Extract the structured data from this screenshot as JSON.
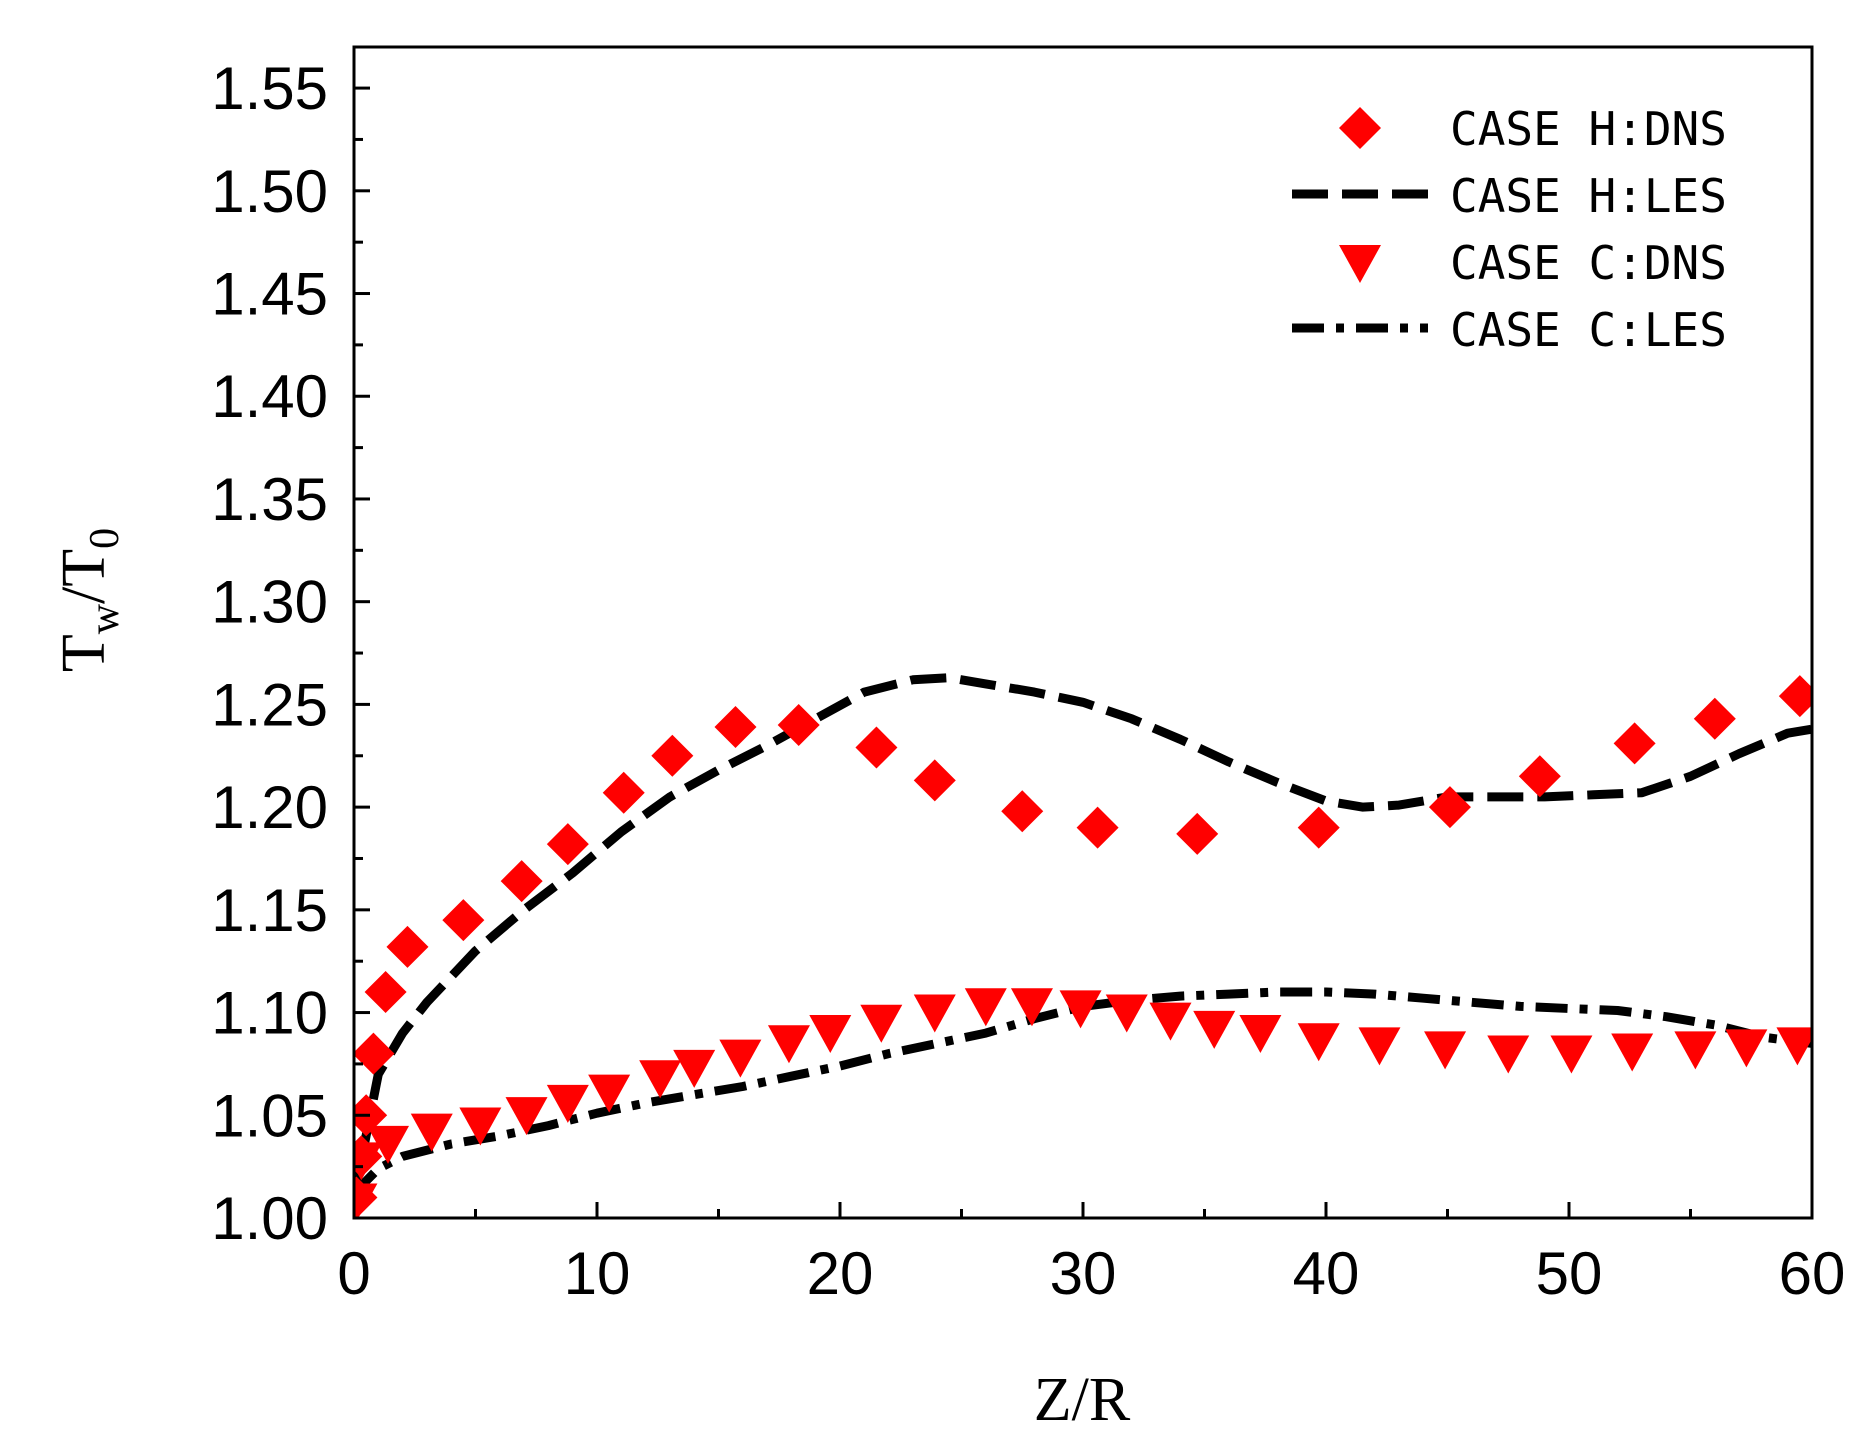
{
  "chart_data": {
    "type": "scatter",
    "title": "",
    "xlabel": "Z/R",
    "ylabel_main": "T",
    "ylabel_sub1": "w",
    "ylabel_slash": "/",
    "ylabel_main2": "T",
    "ylabel_sub2": "0",
    "xlim": [
      0,
      60
    ],
    "ylim": [
      1.0,
      1.57
    ],
    "xticks": [
      0,
      10,
      20,
      30,
      40,
      50,
      60
    ],
    "xtick_labels": [
      "0",
      "10",
      "20",
      "30",
      "40",
      "50",
      "60"
    ],
    "yticks": [
      1.0,
      1.05,
      1.1,
      1.15,
      1.2,
      1.25,
      1.3,
      1.35,
      1.4,
      1.45,
      1.5,
      1.55
    ],
    "ytick_labels": [
      "1.00",
      "1.05",
      "1.10",
      "1.15",
      "1.20",
      "1.25",
      "1.30",
      "1.35",
      "1.40",
      "1.45",
      "1.50",
      "1.55"
    ],
    "legend_position": "top-right",
    "colors": {
      "dns": "#ff0000",
      "les": "#000000"
    },
    "series": [
      {
        "name": "CASE H:DNS",
        "style": "diamond-marker",
        "x": [
          0.1,
          0.3,
          0.5,
          0.8,
          1.3,
          2.2,
          4.5,
          6.9,
          8.8,
          11.1,
          13.1,
          15.7,
          18.3,
          21.5,
          23.9,
          27.5,
          30.6,
          34.7,
          39.7,
          45.1,
          48.8,
          52.7,
          56.0,
          59.5
        ],
        "y": [
          1.01,
          1.03,
          1.05,
          1.08,
          1.11,
          1.132,
          1.145,
          1.164,
          1.182,
          1.207,
          1.225,
          1.239,
          1.24,
          1.229,
          1.213,
          1.198,
          1.19,
          1.187,
          1.19,
          1.2,
          1.215,
          1.231,
          1.243,
          1.254
        ]
      },
      {
        "name": "CASE H:LES",
        "style": "dashed-line",
        "x": [
          0,
          0.5,
          1,
          2,
          3,
          5,
          7,
          9,
          11,
          13,
          15,
          17,
          19,
          21,
          23,
          24.5,
          26,
          28,
          30,
          32,
          34,
          36,
          38,
          40,
          41.5,
          43,
          45,
          47,
          49,
          51,
          53,
          55,
          57,
          59,
          60
        ],
        "y": [
          1.01,
          1.04,
          1.07,
          1.09,
          1.105,
          1.13,
          1.15,
          1.168,
          1.188,
          1.205,
          1.218,
          1.23,
          1.243,
          1.256,
          1.262,
          1.263,
          1.26,
          1.256,
          1.251,
          1.243,
          1.233,
          1.222,
          1.212,
          1.203,
          1.2,
          1.201,
          1.205,
          1.205,
          1.205,
          1.206,
          1.207,
          1.215,
          1.226,
          1.236,
          1.238
        ]
      },
      {
        "name": "CASE C:DNS",
        "style": "triangle-down-marker",
        "x": [
          0.1,
          0.3,
          1.4,
          3.2,
          5.2,
          7.1,
          8.8,
          10.5,
          12.6,
          14.0,
          15.9,
          17.9,
          19.6,
          21.7,
          23.9,
          26.0,
          27.9,
          29.9,
          31.8,
          33.6,
          35.4,
          37.3,
          39.7,
          42.2,
          44.9,
          47.5,
          50.1,
          52.6,
          55.2,
          57.3,
          59.4
        ],
        "y": [
          1.01,
          1.03,
          1.038,
          1.044,
          1.047,
          1.052,
          1.058,
          1.063,
          1.07,
          1.075,
          1.08,
          1.087,
          1.092,
          1.097,
          1.102,
          1.105,
          1.105,
          1.104,
          1.102,
          1.098,
          1.094,
          1.092,
          1.088,
          1.086,
          1.084,
          1.082,
          1.082,
          1.083,
          1.084,
          1.085,
          1.086
        ]
      },
      {
        "name": "CASE C:LES",
        "style": "dash-dot-line",
        "x": [
          0,
          0.5,
          1,
          2,
          4,
          6,
          8,
          10,
          12,
          14,
          16,
          18,
          20,
          22,
          24,
          26,
          28,
          30,
          32,
          34,
          36,
          38,
          40,
          42,
          44,
          46,
          48,
          50,
          52,
          54,
          56,
          58,
          60
        ],
        "y": [
          1.01,
          1.018,
          1.024,
          1.03,
          1.036,
          1.04,
          1.045,
          1.051,
          1.056,
          1.06,
          1.064,
          1.069,
          1.074,
          1.08,
          1.085,
          1.09,
          1.097,
          1.103,
          1.106,
          1.108,
          1.109,
          1.11,
          1.11,
          1.109,
          1.107,
          1.105,
          1.103,
          1.102,
          1.101,
          1.098,
          1.094,
          1.088,
          1.085
        ]
      }
    ]
  }
}
